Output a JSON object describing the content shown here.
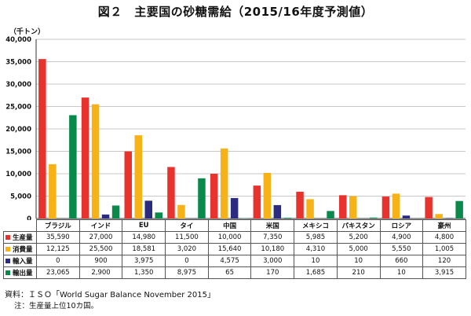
{
  "chart_data": {
    "type": "bar",
    "title": "図２　主要国の砂糖需給（2015/16年度予測値）",
    "ylabel": "（千トン）",
    "ylim": [
      0,
      40000
    ],
    "yticks": [
      "0",
      "5,000",
      "10,000",
      "15,000",
      "20,000",
      "25,000",
      "30,000",
      "35,000",
      "40,000"
    ],
    "ytick_values": [
      0,
      5000,
      10000,
      15000,
      20000,
      25000,
      30000,
      35000,
      40000
    ],
    "grid": true,
    "categories": [
      "ブラジル",
      "インド",
      "EU",
      "タイ",
      "中国",
      "米国",
      "メキシコ",
      "パキスタン",
      "ロシア",
      "豪州"
    ],
    "series": [
      {
        "name": "生産量",
        "color": "#e8322e",
        "values": [
          35590,
          27000,
          14980,
          11500,
          10000,
          7350,
          5985,
          5200,
          4900,
          4800
        ],
        "labels": [
          "35,590",
          "27,000",
          "14,980",
          "11,500",
          "10,000",
          "7,350",
          "5,985",
          "5,200",
          "4,900",
          "4,800"
        ]
      },
      {
        "name": "消費量",
        "color": "#f7b217",
        "values": [
          12125,
          25500,
          18581,
          3020,
          15640,
          10180,
          4310,
          5000,
          5550,
          1005
        ],
        "labels": [
          "12,125",
          "25,500",
          "18,581",
          "3,020",
          "15,640",
          "10,180",
          "4,310",
          "5,000",
          "5,550",
          "1,005"
        ]
      },
      {
        "name": "輸入量",
        "color": "#2b2b7f",
        "values": [
          0,
          900,
          3975,
          0,
          4575,
          3000,
          10,
          10,
          660,
          120
        ],
        "labels": [
          "0",
          "900",
          "3,975",
          "0",
          "4,575",
          "3,000",
          "10",
          "10",
          "660",
          "120"
        ]
      },
      {
        "name": "輸出量",
        "color": "#0a8a4a",
        "values": [
          23065,
          2900,
          1350,
          8975,
          65,
          170,
          1685,
          210,
          10,
          3915
        ],
        "labels": [
          "23,065",
          "2,900",
          "1,350",
          "8,975",
          "65",
          "170",
          "1,685",
          "210",
          "10",
          "3,915"
        ]
      }
    ]
  },
  "source": "資料：ＩＳＯ「World Sugar Balance November 2015」",
  "note": "注：生産量上位10カ国。"
}
